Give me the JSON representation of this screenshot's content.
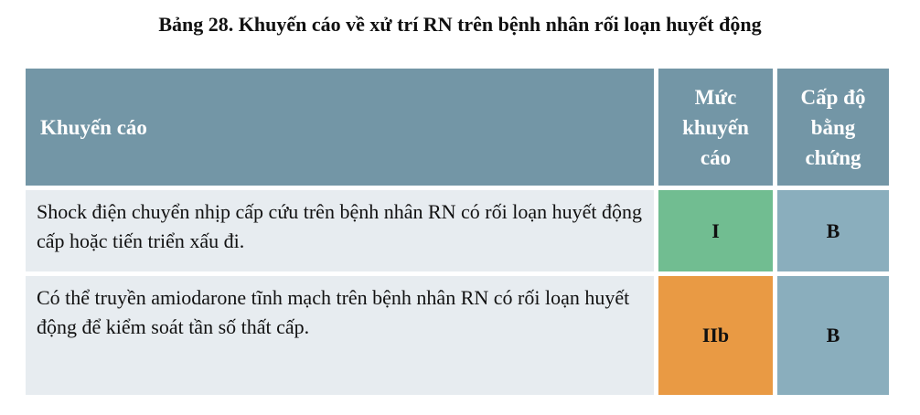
{
  "title": "Bảng 28. Khuyến cáo về xử trí RN trên bệnh nhân rối loạn huyết động",
  "table": {
    "headers": [
      "Khuyến cáo",
      "Mức khuyến cáo",
      "Cấp độ bằng chứng"
    ],
    "rows": [
      {
        "recommendation": "Shock điện chuyển nhịp cấp cứu trên bệnh nhân RN có rối loạn huyết động cấp hoặc tiến triển xấu đi.",
        "class": "I",
        "level": "B",
        "class_color": "#71bd91"
      },
      {
        "recommendation": "Có thể truyền amiodarone tĩnh mạch trên bệnh nhân RN có rối loạn huyết động để kiểm soát tần số thất cấp.",
        "class": "IIb",
        "level": "B",
        "class_color": "#e99a44"
      }
    ]
  },
  "colors": {
    "header": "#7396a6",
    "row_text_bg": "#e7ecf0",
    "level_bg": "#8aaebd"
  }
}
